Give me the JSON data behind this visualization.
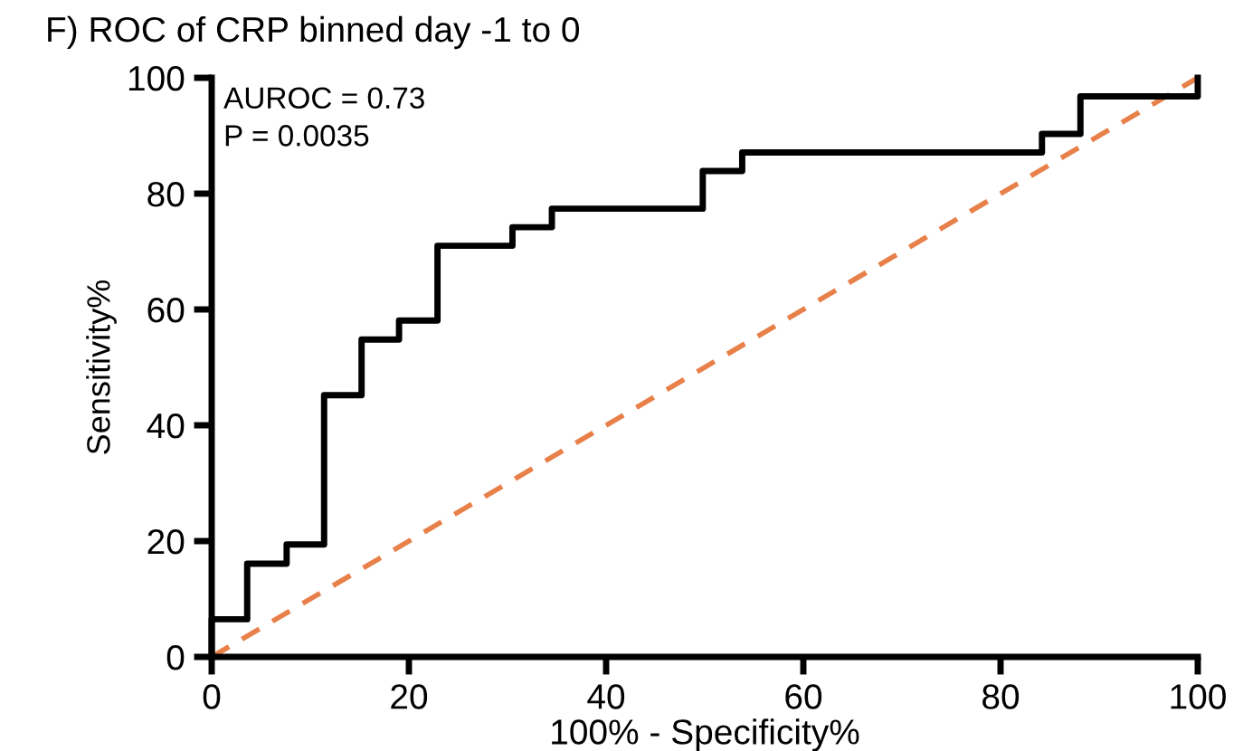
{
  "chart_data": {
    "type": "step",
    "title": "F) ROC of CRP binned day -1 to 0",
    "xlabel": "100% - Specificity%",
    "ylabel": "Sensitivity%",
    "annotations": [
      "AUROC = 0.73",
      "P = 0.0035"
    ],
    "series": [
      {
        "color": "#000000",
        "line_style": "solid",
        "x": [
          0,
          0,
          3.6,
          7.6,
          11.4,
          15.2,
          19.0,
          22.9,
          30.5,
          34.5,
          49.8,
          53.8,
          84.2,
          88.1,
          100
        ],
        "values": [
          0,
          6.5,
          16.1,
          19.4,
          45.2,
          54.8,
          58.1,
          71.0,
          74.2,
          77.4,
          83.9,
          87.1,
          90.3,
          96.8,
          100
        ]
      },
      {
        "type": "line",
        "color": "#e8804a",
        "line_style": "dashed",
        "x": [
          0,
          100
        ],
        "values": [
          0,
          100
        ]
      }
    ],
    "xlim": [
      0,
      100
    ],
    "ylim": [
      0,
      100
    ],
    "xticks": [
      0,
      20,
      40,
      60,
      80,
      100
    ],
    "yticks": [
      0,
      20,
      40,
      60,
      80,
      100
    ],
    "grid": false,
    "legend": false
  }
}
